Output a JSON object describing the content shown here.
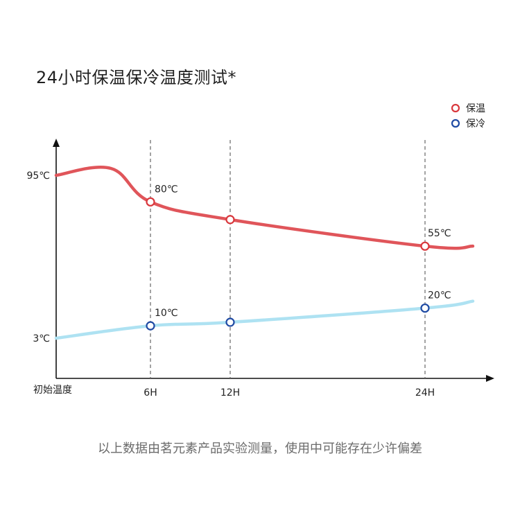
{
  "title": "24小时保温保冷温度测试*",
  "footnote": "以上数据由茗元素产品实验测量，使用中可能存在少许偏差",
  "chart_data": {
    "type": "line",
    "x_origin_label": "初始温度",
    "categories": [
      "6H",
      "12H",
      "24H"
    ],
    "y_labels": [
      "95℃",
      "3℃"
    ],
    "y_label_values": [
      95,
      3
    ],
    "series": [
      {
        "name": "保温",
        "color": "#d9383d",
        "line_color": "#e0555a",
        "start": 95,
        "values": [
          80,
          70,
          55
        ],
        "value_labels": [
          "80℃",
          "",
          "55℃"
        ]
      },
      {
        "name": "保冷",
        "color": "#1f4aa3",
        "line_color": "#aee2f2",
        "start": 3,
        "values": [
          10,
          12,
          20
        ],
        "value_labels": [
          "10℃",
          "",
          "20℃"
        ]
      }
    ],
    "legend_position": "top-right",
    "grid": "dashed vertical lines at 6H, 12H, 24H"
  }
}
